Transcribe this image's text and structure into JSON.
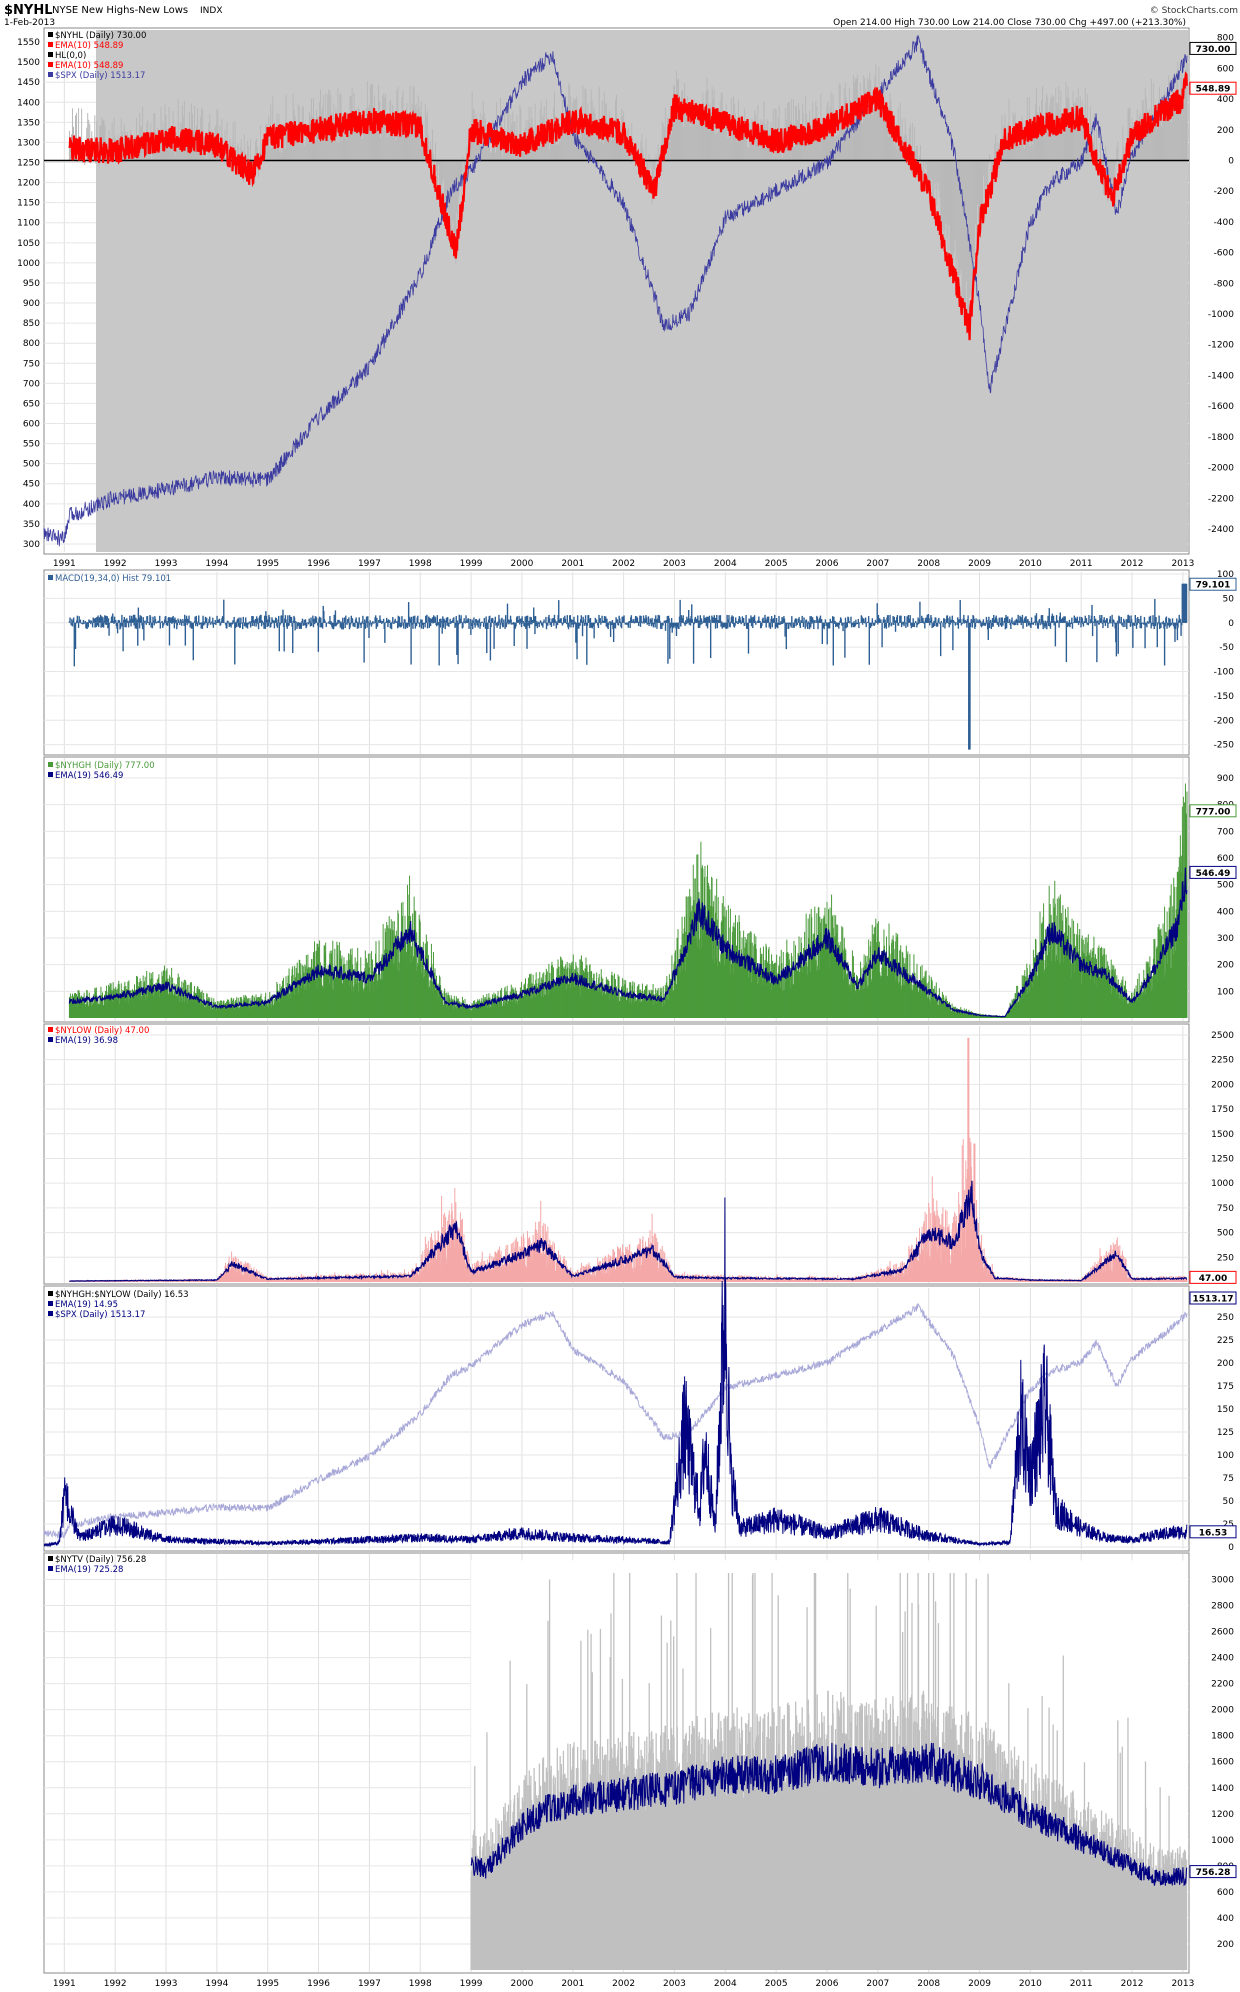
{
  "header": {
    "symbol": "$NYHL",
    "name": "NYSE New Highs-New Lows",
    "exchange": "INDX",
    "date": "1-Feb-2013",
    "quote": "Open 214.00  High 730.00  Low 214.00  Close 730.00  Chg +497.00 (+213.30%)",
    "brand": "© StockCharts.com"
  },
  "colors": {
    "grey_fill": "#c8c8c8",
    "red": "#ff0000",
    "navy": "#000080",
    "blue_spx": "#3b3ba0",
    "macd": "#2e5f94",
    "green": "#4a9a3a",
    "pink": "#f4a8a8",
    "lavender": "#a8a8d8"
  },
  "chart_data": [
    {
      "type": "line",
      "panel": "nyhl",
      "legend": [
        "$NYHL (Daily) 730.00",
        "EMA(10) 548.89",
        "HL(0,0)",
        "EMA(10) 548.89",
        "$SPX (Daily) 1513.17"
      ],
      "left_ticks": [
        "300",
        "350",
        "400",
        "450",
        "500",
        "550",
        "600",
        "650",
        "700",
        "750",
        "800",
        "850",
        "900",
        "950",
        "1000",
        "1050",
        "1100",
        "1150",
        "1200",
        "1250",
        "1300",
        "1350",
        "1400",
        "1450",
        "1500",
        "1550"
      ],
      "right_ticks": [
        "-2400",
        "-2200",
        "-2000",
        "-1800",
        "-1600",
        "-1400",
        "-1200",
        "-1000",
        "-800",
        "-600",
        "-400",
        "-200",
        "0",
        "200",
        "400",
        "600",
        "800"
      ],
      "last_labels": [
        "730.00",
        "548.89"
      ],
      "ylim_left": [
        280,
        1580
      ],
      "ylim_right": [
        -2550,
        850
      ],
      "series_spx": {
        "x": [
          1990.6,
          1991.0,
          1991.1,
          1992.0,
          1993.0,
          1994.0,
          1995.0,
          1996.0,
          1997.0,
          1998.0,
          1998.6,
          1999.0,
          2000.0,
          2000.6,
          2001.0,
          2002.0,
          2002.8,
          2003.3,
          2004.0,
          2005.0,
          2006.0,
          2007.0,
          2007.8,
          2008.5,
          2009.0,
          2009.2,
          2010.0,
          2010.4,
          2011.0,
          2011.3,
          2011.7,
          2012.0,
          2012.7,
          2013.08
        ],
        "y": [
          325,
          310,
          370,
          415,
          435,
          465,
          459,
          615,
          740,
          970,
          1180,
          1230,
          1450,
          1520,
          1320,
          1150,
          840,
          875,
          1110,
          1180,
          1250,
          1420,
          1550,
          1280,
          900,
          680,
          1100,
          1200,
          1250,
          1360,
          1120,
          1270,
          1420,
          1513
        ]
      },
      "series_ema_hl": {
        "x": [
          1991.1,
          1992.0,
          1993.0,
          1994.0,
          1994.7,
          1995.0,
          1996.0,
          1997.0,
          1998.0,
          1998.7,
          1999.0,
          2000.0,
          2001.0,
          2002.0,
          2002.6,
          2003.0,
          2004.0,
          2005.0,
          2006.0,
          2007.0,
          2008.0,
          2008.8,
          2009.0,
          2009.5,
          2010.0,
          2011.0,
          2011.6,
          2012.0,
          2012.5,
          2013.0,
          2013.08
        ],
        "y": [
          80,
          60,
          150,
          100,
          -100,
          150,
          200,
          260,
          220,
          -600,
          200,
          100,
          260,
          180,
          -200,
          350,
          250,
          120,
          220,
          400,
          -200,
          -1100,
          -400,
          140,
          200,
          280,
          -250,
          160,
          300,
          400,
          549
        ]
      },
      "hl_zero": 0
    },
    {
      "type": "bar",
      "panel": "macd",
      "legend": [
        "MACD(19,34,0) Hist 79.101"
      ],
      "right_ticks": [
        "-250",
        "-200",
        "-150",
        "-100",
        "-50",
        "0",
        "50",
        "100"
      ],
      "last_label": "79.101",
      "ylim": [
        -265,
        100
      ]
    },
    {
      "type": "line",
      "panel": "nyhgh",
      "legend": [
        "$NYHGH (Daily) 777.00",
        "EMA(19) 546.49"
      ],
      "right_ticks": [
        "100",
        "200",
        "300",
        "400",
        "500",
        "600",
        "700",
        "800",
        "900"
      ],
      "last_labels": [
        "777.00",
        "546.49"
      ],
      "ylim": [
        0,
        960
      ],
      "series_ema": {
        "x": [
          1991.1,
          1992.0,
          1993.0,
          1994.0,
          1995.0,
          1996.0,
          1997.0,
          1997.8,
          1998.5,
          1999.0,
          2000.0,
          2001.0,
          2002.0,
          2002.8,
          2003.5,
          2004.0,
          2005.0,
          2006.0,
          2006.6,
          2007.0,
          2008.0,
          2008.5,
          2009.0,
          2009.5,
          2010.0,
          2010.4,
          2011.0,
          2011.5,
          2012.0,
          2012.5,
          2012.9,
          2013.08
        ],
        "y": [
          60,
          80,
          120,
          40,
          60,
          180,
          150,
          320,
          60,
          40,
          90,
          150,
          90,
          70,
          400,
          260,
          140,
          300,
          120,
          240,
          100,
          30,
          10,
          5,
          150,
          330,
          200,
          160,
          60,
          200,
          350,
          546
        ]
      }
    },
    {
      "type": "bar",
      "panel": "nylow",
      "legend": [
        "$NYLOW (Daily) 47.00",
        "EMA(19) 36.98"
      ],
      "right_ticks": [
        "250",
        "500",
        "750",
        "1000",
        "1250",
        "1500",
        "1750",
        "2000",
        "2250",
        "2500"
      ],
      "last_label": "47.00",
      "ylim": [
        0,
        2550
      ],
      "series_ema": {
        "x": [
          1991.1,
          1994.0,
          1994.3,
          1995.0,
          1997.8,
          1998.0,
          1998.7,
          1999.0,
          2000.0,
          2000.4,
          2001.0,
          2002.6,
          2003.0,
          2004.0,
          2006.5,
          2007.5,
          2008.0,
          2008.5,
          2008.85,
          2009.0,
          2009.3,
          2010.0,
          2011.0,
          2011.7,
          2012.0,
          2013.08
        ],
        "y": [
          10,
          20,
          180,
          30,
          60,
          150,
          560,
          100,
          280,
          380,
          60,
          320,
          50,
          40,
          30,
          120,
          500,
          400,
          900,
          300,
          40,
          20,
          15,
          280,
          30,
          37
        ]
      }
    },
    {
      "type": "line",
      "panel": "ratio",
      "legend": [
        "$NYHGH:$NYLOW (Daily) 16.53",
        "EMA(19) 14.95",
        "$SPX (Daily) 1513.17"
      ],
      "right_ticks": [
        "0",
        "25",
        "50",
        "75",
        "100",
        "125",
        "150",
        "175",
        "200",
        "225",
        "250"
      ],
      "last_labels": [
        "1513.17",
        "16.53"
      ],
      "ylim": [
        0,
        275
      ],
      "series_ratio": {
        "x": [
          1990.6,
          1990.9,
          1991.0,
          1991.3,
          1992.0,
          1993.0,
          1994.0,
          1995.0,
          1998.0,
          1999.0,
          2000.0,
          2001.0,
          2002.0,
          2002.9,
          2003.2,
          2003.5,
          2003.6,
          2003.8,
          2004.0,
          2004.1,
          2004.3,
          2005.0,
          2006.0,
          2007.0,
          2008.0,
          2009.0,
          2009.6,
          2009.8,
          2010.0,
          2010.3,
          2010.5,
          2011.0,
          2011.5,
          2012.0,
          2012.7,
          2013.08
        ],
        "y": [
          2,
          5,
          55,
          10,
          25,
          8,
          6,
          4,
          10,
          8,
          15,
          10,
          8,
          5,
          130,
          40,
          110,
          20,
          280,
          80,
          20,
          30,
          15,
          30,
          12,
          3,
          5,
          140,
          80,
          155,
          40,
          20,
          10,
          8,
          15,
          16.5
        ]
      }
    },
    {
      "type": "area",
      "panel": "nytv",
      "legend": [
        "$NYTV (Daily) 756.28",
        "EMA(19) 725.28"
      ],
      "right_ticks": [
        "200",
        "400",
        "600",
        "800",
        "1000",
        "1200",
        "1400",
        "1600",
        "1800",
        "2000",
        "2200",
        "2400",
        "2600",
        "2800",
        "3000"
      ],
      "last_label": "756.28",
      "ylim": [
        0,
        3150
      ],
      "series_ema": {
        "x": [
          1999.0,
          1999.3,
          2000.0,
          2000.5,
          2001.0,
          2002.0,
          2003.0,
          2004.0,
          2005.0,
          2006.0,
          2007.0,
          2008.0,
          2009.0,
          2010.0,
          2010.5,
          2011.0,
          2011.5,
          2012.0,
          2012.5,
          2013.08
        ],
        "y": [
          800,
          780,
          1100,
          1250,
          1300,
          1350,
          1400,
          1500,
          1500,
          1600,
          1550,
          1600,
          1450,
          1200,
          1100,
          1000,
          900,
          800,
          700,
          725
        ]
      }
    }
  ],
  "x_axis": {
    "year_labels": [
      "1991",
      "1992",
      "1993",
      "1994",
      "1995",
      "1996",
      "1997",
      "1998",
      "1999",
      "2000",
      "2001",
      "2002",
      "2003",
      "2004",
      "2005",
      "2006",
      "2007",
      "2008",
      "2009",
      "2010",
      "2011",
      "2012",
      "2013"
    ],
    "range": [
      1990.6,
      2013.12
    ]
  }
}
